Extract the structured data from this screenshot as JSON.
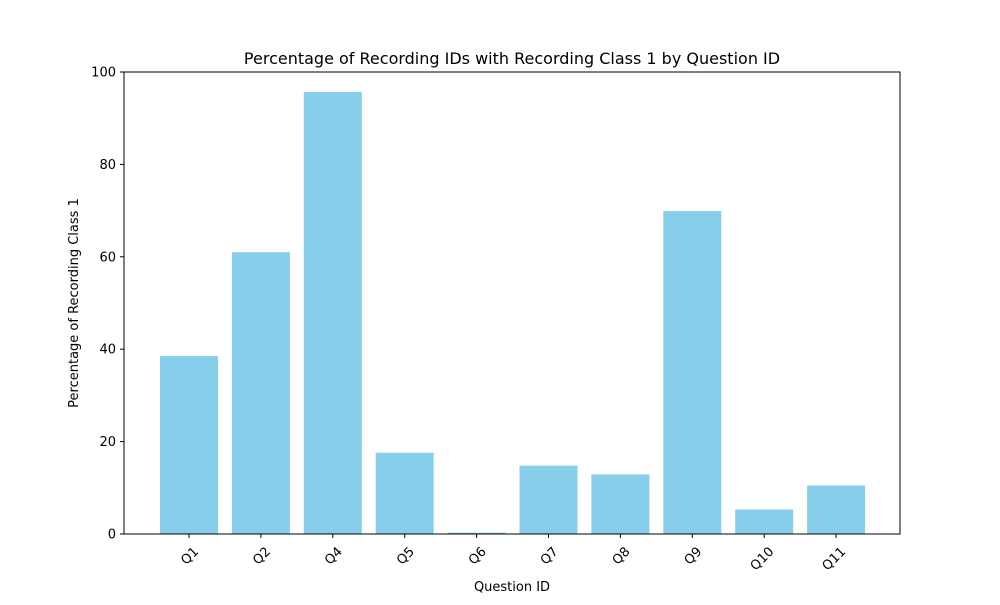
{
  "chart_data": {
    "type": "bar",
    "title": "Percentage of Recording IDs with Recording Class 1 by Question ID",
    "xlabel": "Question ID",
    "ylabel": "Percentage of Recording Class 1",
    "categories": [
      "Q1",
      "Q2",
      "Q4",
      "Q5",
      "Q6",
      "Q7",
      "Q8",
      "Q9",
      "Q10",
      "Q11"
    ],
    "values": [
      38.5,
      61.0,
      95.7,
      17.6,
      0.3,
      14.8,
      12.9,
      69.9,
      5.3,
      10.5
    ],
    "ylim": [
      0,
      100
    ],
    "yticks": [
      "0",
      "20",
      "40",
      "60",
      "80",
      "100"
    ],
    "bar_color": "#87ceeb",
    "grid": false,
    "legend": "none"
  }
}
